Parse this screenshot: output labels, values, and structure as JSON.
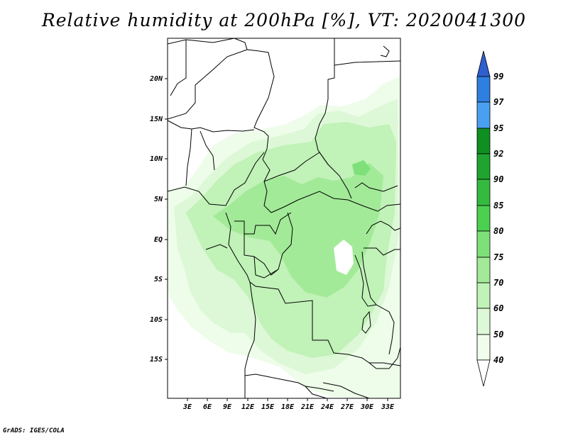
{
  "title": "Relative humidity at 200hPa [%], VT: 2020041300",
  "credit": "GrADS: IGES/COLA",
  "map": {
    "lat_labels": [
      "20N",
      "15N",
      "10N",
      "5N",
      "EQ",
      "5S",
      "10S",
      "15S"
    ],
    "lon_labels": [
      "3E",
      "6E",
      "9E",
      "12E",
      "15E",
      "18E",
      "21E",
      "24E",
      "27E",
      "30E",
      "33E"
    ],
    "variable": "Relative humidity",
    "level": "200hPa",
    "units": "%",
    "valid_time": "2020041300"
  },
  "colorbar": {
    "levels": [
      "99",
      "97",
      "95",
      "92",
      "90",
      "85",
      "80",
      "75",
      "70",
      "60",
      "50",
      "40"
    ],
    "colors": [
      "#2e5fd0",
      "#2f7fe0",
      "#4aa0f0",
      "#0f8f1f",
      "#1fa42f",
      "#35ba40",
      "#4cd050",
      "#7ee078",
      "#a2ea98",
      "#c1f2b8",
      "#ddf8d6",
      "#f0fdec",
      "#ffffff"
    ]
  }
}
